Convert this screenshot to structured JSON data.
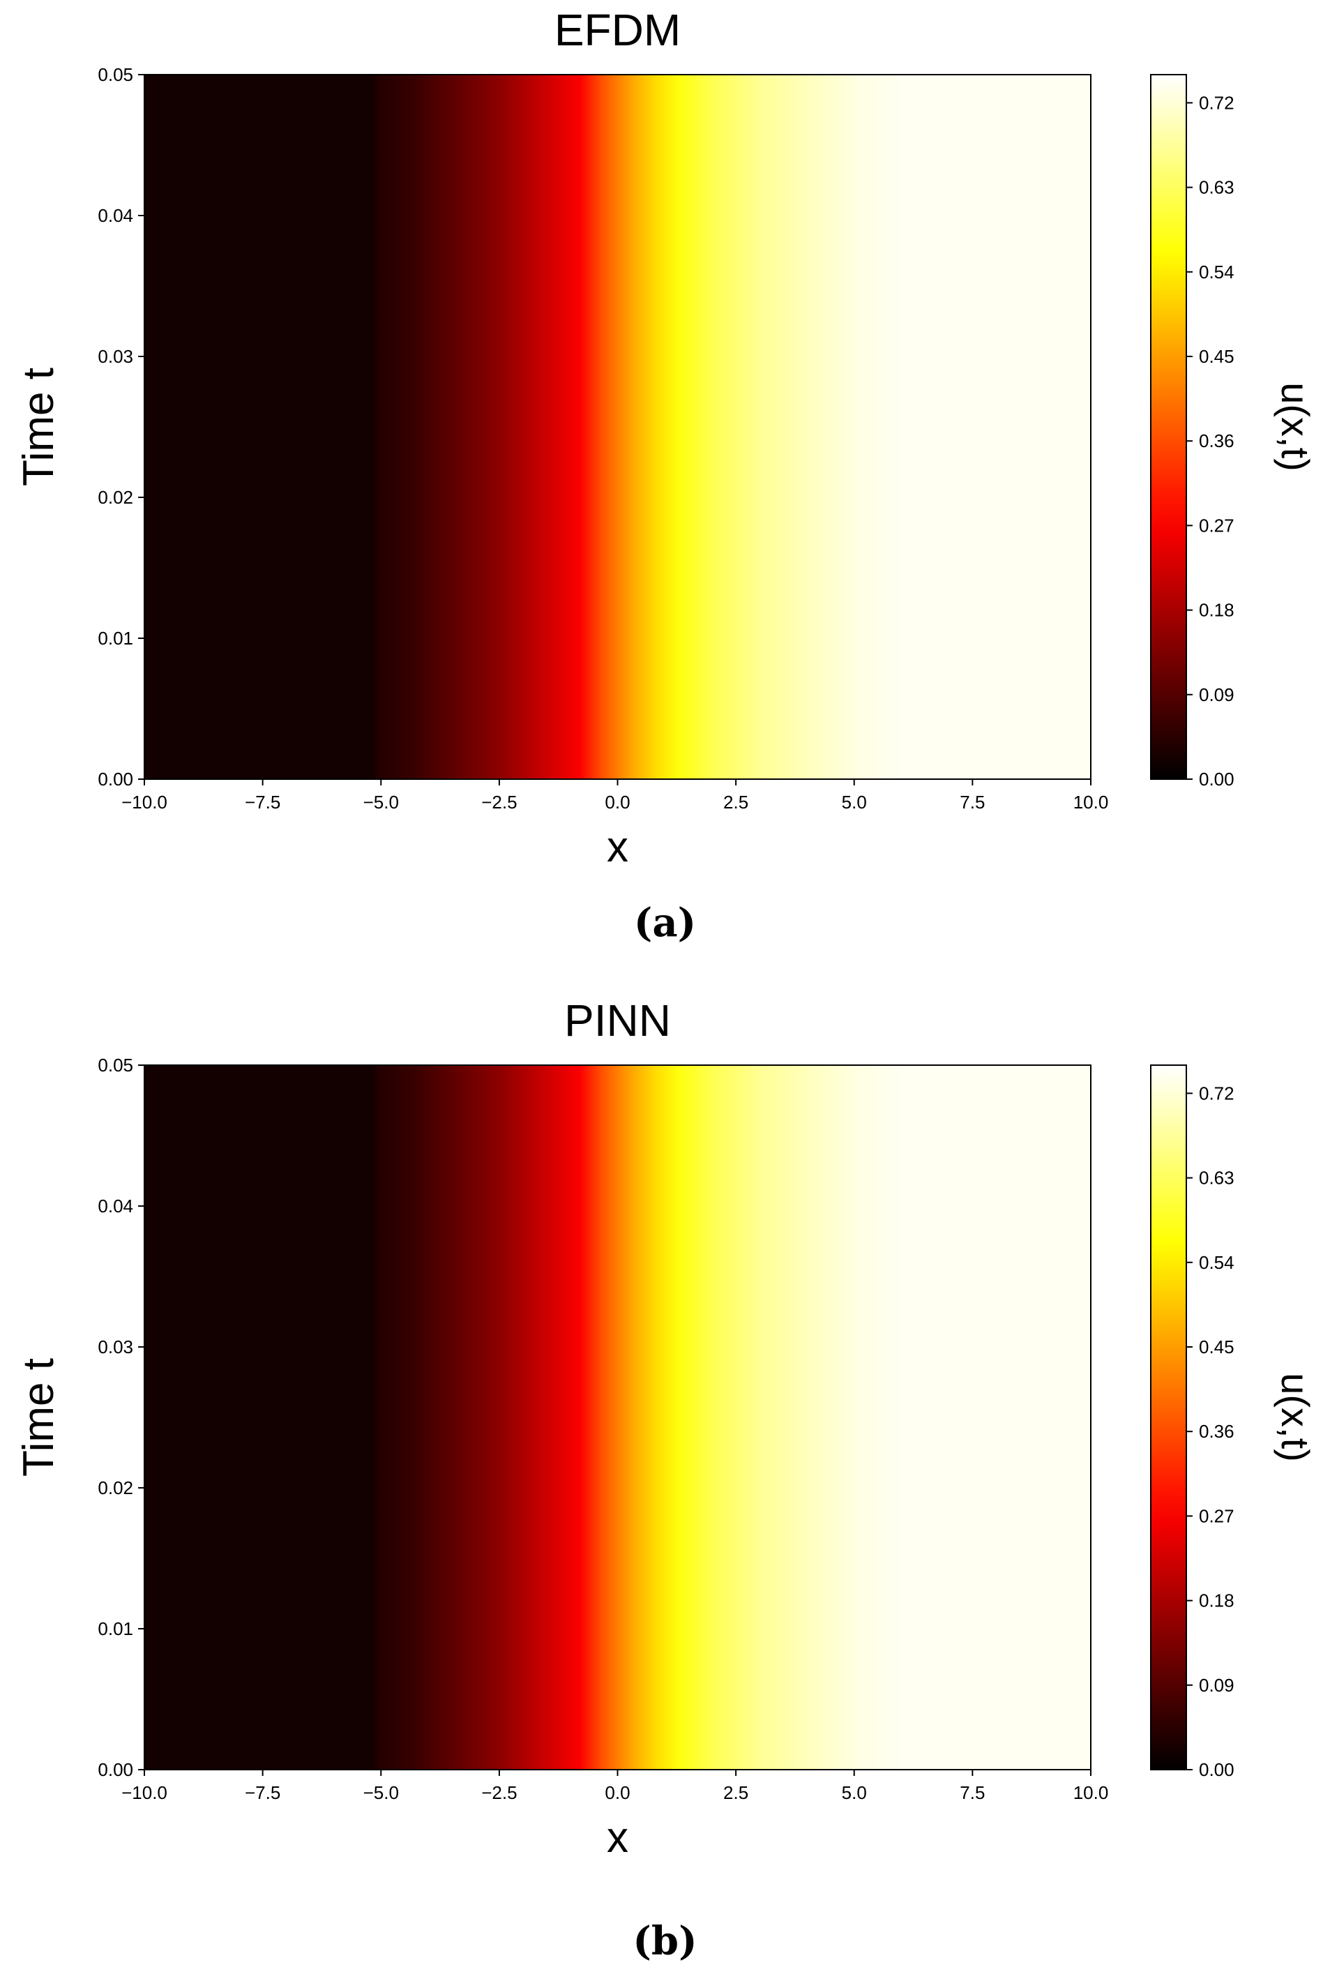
{
  "chart_data": [
    {
      "type": "heatmap",
      "panel_label": "(a)",
      "title": "EFDM",
      "xlabel": "x",
      "ylabel": "Time t",
      "colorbar_label": "u(x,t)",
      "xlim": [
        -10.0,
        10.0
      ],
      "ylim": [
        0.0,
        0.05
      ],
      "clim": [
        0.0,
        0.75
      ],
      "x_ticks": [
        "-10.0",
        "-7.5",
        "-5.0",
        "-2.5",
        "0.0",
        "2.5",
        "5.0",
        "7.5",
        "10.0"
      ],
      "y_ticks": [
        "0.00",
        "0.01",
        "0.02",
        "0.03",
        "0.04",
        "0.05"
      ],
      "colorbar_ticks": [
        "0.00",
        "0.09",
        "0.18",
        "0.27",
        "0.36",
        "0.45",
        "0.54",
        "0.63",
        "0.72"
      ],
      "colormap": "hot",
      "profile_x": [
        -10.0,
        -5.2,
        -5.0,
        -4.3,
        -3.5,
        -2.5,
        -1.5,
        -0.8,
        -0.3,
        0.3,
        0.8,
        1.3,
        2.0,
        3.0,
        4.0,
        5.1,
        6.0,
        7.5,
        10.0
      ],
      "profile_u": [
        0.02,
        0.02,
        0.04,
        0.06,
        0.1,
        0.15,
        0.22,
        0.27,
        0.37,
        0.46,
        0.52,
        0.57,
        0.62,
        0.67,
        0.7,
        0.73,
        0.74,
        0.74,
        0.74
      ]
    },
    {
      "type": "heatmap",
      "panel_label": "(b)",
      "title": "PINN",
      "xlabel": "x",
      "ylabel": "Time t",
      "colorbar_label": "u(x,t)",
      "xlim": [
        -10.0,
        10.0
      ],
      "ylim": [
        0.0,
        0.05
      ],
      "clim": [
        0.0,
        0.75
      ],
      "x_ticks": [
        "-10.0",
        "-7.5",
        "-5.0",
        "-2.5",
        "0.0",
        "2.5",
        "5.0",
        "7.5",
        "10.0"
      ],
      "y_ticks": [
        "0.00",
        "0.01",
        "0.02",
        "0.03",
        "0.04",
        "0.05"
      ],
      "colorbar_ticks": [
        "0.00",
        "0.09",
        "0.18",
        "0.27",
        "0.36",
        "0.45",
        "0.54",
        "0.63",
        "0.72"
      ],
      "colormap": "hot",
      "profile_x": [
        -10.0,
        -5.2,
        -5.0,
        -4.3,
        -3.5,
        -2.5,
        -1.5,
        -0.8,
        -0.3,
        0.3,
        0.8,
        1.3,
        2.0,
        3.0,
        4.0,
        5.1,
        6.0,
        7.5,
        10.0
      ],
      "profile_u": [
        0.02,
        0.02,
        0.04,
        0.06,
        0.1,
        0.15,
        0.22,
        0.27,
        0.37,
        0.46,
        0.52,
        0.57,
        0.62,
        0.67,
        0.7,
        0.73,
        0.74,
        0.74,
        0.74
      ]
    }
  ]
}
